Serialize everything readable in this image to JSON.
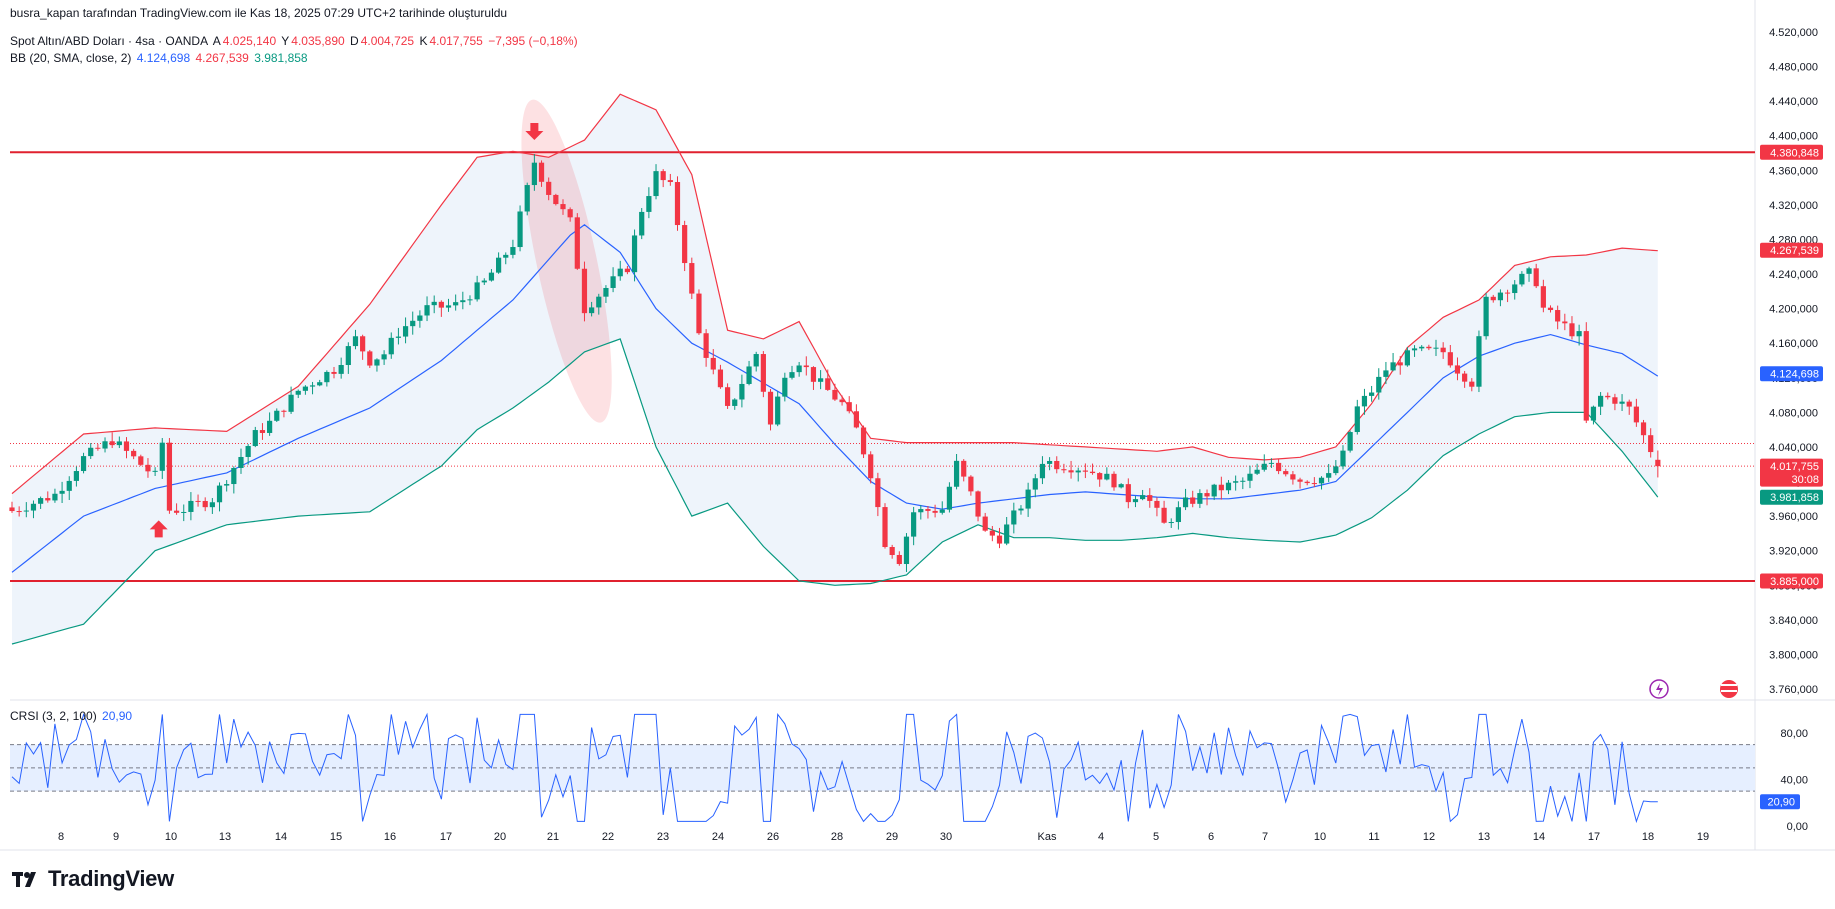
{
  "attribution": "busra_kapan tarafından TradingView.com ile Kas 18, 2025 07:29 UTC+2 tarihinde oluşturuldu",
  "symbol_line": {
    "name": "Spot Altın/ABD Doları · 4sa · OANDA",
    "open_label": "A",
    "open": "4.025,140",
    "high_label": "Y",
    "high": "4.035,890",
    "low_label": "D",
    "low": "4.004,725",
    "close_label": "K",
    "close": "4.017,755",
    "change": "−7,395 (−0,18%)"
  },
  "bb_line": {
    "name": "BB (20, SMA, close, 2)",
    "basis": "4.124,698",
    "upper": "4.267,539",
    "lower": "3.981,858"
  },
  "crsi_line": {
    "name": "CRSI (3, 2, 100)",
    "value": "20,90"
  },
  "brand": "TradingView",
  "colors": {
    "up": "#089981",
    "down": "#f23645",
    "basis": "#2962ff",
    "upper": "#f23645",
    "lower": "#089981",
    "band_fill": "#eef4fb",
    "level_line": "#e0212f",
    "crsi_line": "#2962ff",
    "crsi_band": "#e6efff"
  },
  "chart_data": {
    "type": "candlestick",
    "timeframe": "4sa",
    "x_tick_labels": [
      "8",
      "9",
      "10",
      "13",
      "14",
      "15",
      "16",
      "17",
      "20",
      "21",
      "22",
      "23",
      "24",
      "26",
      "28",
      "29",
      "30",
      "Kas",
      "4",
      "5",
      "6",
      "7",
      "10",
      "11",
      "12",
      "13",
      "14",
      "17",
      "18",
      "19"
    ],
    "y_tick_labels": [
      "4.520,000",
      "4.480,000",
      "4.440,000",
      "4.400,000",
      "4.360,000",
      "4.320,000",
      "4.280,000",
      "4.240,000",
      "4.200,000",
      "4.160,000",
      "4.120,000",
      "4.080,000",
      "4.040,000",
      "4.000,000",
      "3.960,000",
      "3.920,000",
      "3.880,000",
      "3.840,000",
      "3.800,000",
      "3.760,000"
    ],
    "ylim": [
      3745,
      4535
    ],
    "price_labels": [
      {
        "text": "4.380,848",
        "value": 4380.848,
        "color": "#f23645"
      },
      {
        "text": "4.267,539",
        "value": 4267.539,
        "color": "#f23645"
      },
      {
        "text": "4.124,698",
        "value": 4124.698,
        "color": "#2962ff"
      },
      {
        "text": "4.017,755",
        "value": 4017.755,
        "color": "#f23645",
        "countdown": "30:08"
      },
      {
        "text": "3.981,858",
        "value": 3981.858,
        "color": "#089981"
      },
      {
        "text": "3.885,000",
        "value": 3885.0,
        "color": "#f23645"
      }
    ],
    "horizontal_levels": [
      4380.848,
      3885.0
    ],
    "dotted_levels": [
      4044,
      4017.755
    ],
    "key_points": [
      [
        0,
        3966
      ],
      [
        6,
        3985
      ],
      [
        10,
        4027
      ],
      [
        14,
        4048
      ],
      [
        20,
        4006
      ],
      [
        21,
        4045
      ],
      [
        22,
        3967
      ],
      [
        24,
        3968
      ],
      [
        28,
        3980
      ],
      [
        30,
        4004
      ],
      [
        34,
        4054
      ],
      [
        36,
        4068
      ],
      [
        40,
        4105
      ],
      [
        45,
        4130
      ],
      [
        48,
        4165
      ],
      [
        50,
        4140
      ],
      [
        52,
        4148
      ],
      [
        54,
        4173
      ],
      [
        58,
        4200
      ],
      [
        62,
        4204
      ],
      [
        66,
        4230
      ],
      [
        70,
        4275
      ],
      [
        73,
        4370
      ],
      [
        75,
        4335
      ],
      [
        78,
        4300
      ],
      [
        80,
        4200
      ],
      [
        86,
        4248
      ],
      [
        88,
        4315
      ],
      [
        90,
        4355
      ],
      [
        92,
        4340
      ],
      [
        94,
        4258
      ],
      [
        96,
        4170
      ],
      [
        100,
        4082
      ],
      [
        104,
        4148
      ],
      [
        106,
        4065
      ],
      [
        108,
        4127
      ],
      [
        110,
        4140
      ],
      [
        112,
        4120
      ],
      [
        116,
        4090
      ],
      [
        118,
        4060
      ],
      [
        120,
        4010
      ],
      [
        122,
        3930
      ],
      [
        124,
        3910
      ],
      [
        126,
        3965
      ],
      [
        130,
        3968
      ],
      [
        132,
        4020
      ],
      [
        134,
        3985
      ],
      [
        136,
        3940
      ],
      [
        138,
        3935
      ],
      [
        142,
        3985
      ],
      [
        144,
        4025
      ],
      [
        146,
        4020
      ],
      [
        150,
        4015
      ],
      [
        154,
        4000
      ],
      [
        156,
        3980
      ],
      [
        158,
        3990
      ],
      [
        161,
        3950
      ],
      [
        164,
        3975
      ],
      [
        168,
        3990
      ],
      [
        172,
        4000
      ],
      [
        176,
        4022
      ],
      [
        180,
        4002
      ],
      [
        184,
        4005
      ],
      [
        186,
        4030
      ],
      [
        188,
        4085
      ],
      [
        190,
        4105
      ],
      [
        192,
        4130
      ],
      [
        196,
        4150
      ],
      [
        200,
        4150
      ],
      [
        202,
        4130
      ],
      [
        204,
        4115
      ],
      [
        206,
        4210
      ],
      [
        210,
        4230
      ],
      [
        212,
        4240
      ],
      [
        213,
        4232
      ],
      [
        214,
        4200
      ],
      [
        216,
        4185
      ],
      [
        219,
        4168
      ],
      [
        220,
        4068
      ],
      [
        222,
        4098
      ],
      [
        224,
        4095
      ],
      [
        226,
        4084
      ],
      [
        229,
        4037
      ],
      [
        230,
        4018
      ]
    ],
    "bollinger": {
      "basis": [
        [
          0,
          3895
        ],
        [
          10,
          3960
        ],
        [
          20,
          3992
        ],
        [
          30,
          4010
        ],
        [
          40,
          4050
        ],
        [
          50,
          4085
        ],
        [
          60,
          4140
        ],
        [
          70,
          4210
        ],
        [
          78,
          4285
        ],
        [
          80,
          4297
        ],
        [
          85,
          4265
        ],
        [
          90,
          4200
        ],
        [
          95,
          4160
        ],
        [
          100,
          4138
        ],
        [
          110,
          4090
        ],
        [
          115,
          4043
        ],
        [
          120,
          4000
        ],
        [
          125,
          3975
        ],
        [
          130,
          3968
        ],
        [
          135,
          3975
        ],
        [
          140,
          3980
        ],
        [
          145,
          3985
        ],
        [
          150,
          3988
        ],
        [
          155,
          3985
        ],
        [
          160,
          3982
        ],
        [
          165,
          3980
        ],
        [
          170,
          3980
        ],
        [
          175,
          3985
        ],
        [
          180,
          3990
        ],
        [
          185,
          4000
        ],
        [
          190,
          4040
        ],
        [
          195,
          4080
        ],
        [
          200,
          4120
        ],
        [
          205,
          4145
        ],
        [
          210,
          4160
        ],
        [
          215,
          4170
        ],
        [
          220,
          4158
        ],
        [
          225,
          4148
        ],
        [
          230,
          4122
        ]
      ],
      "upper": [
        [
          0,
          3986
        ],
        [
          10,
          4055
        ],
        [
          20,
          4062
        ],
        [
          30,
          4058
        ],
        [
          40,
          4110
        ],
        [
          50,
          4205
        ],
        [
          60,
          4320
        ],
        [
          65,
          4375
        ],
        [
          70,
          4382
        ],
        [
          75,
          4375
        ],
        [
          80,
          4395
        ],
        [
          85,
          4448
        ],
        [
          90,
          4430
        ],
        [
          95,
          4355
        ],
        [
          100,
          4175
        ],
        [
          105,
          4165
        ],
        [
          110,
          4185
        ],
        [
          115,
          4110
        ],
        [
          120,
          4050
        ],
        [
          125,
          4045
        ],
        [
          130,
          4045
        ],
        [
          140,
          4045
        ],
        [
          150,
          4040
        ],
        [
          160,
          4035
        ],
        [
          165,
          4040
        ],
        [
          170,
          4028
        ],
        [
          175,
          4025
        ],
        [
          180,
          4028
        ],
        [
          185,
          4040
        ],
        [
          190,
          4090
        ],
        [
          195,
          4155
        ],
        [
          200,
          4190
        ],
        [
          205,
          4210
        ],
        [
          210,
          4250
        ],
        [
          215,
          4260
        ],
        [
          220,
          4262
        ],
        [
          225,
          4270
        ],
        [
          230,
          4267
        ]
      ],
      "lower": [
        [
          0,
          3812
        ],
        [
          10,
          3835
        ],
        [
          20,
          3920
        ],
        [
          30,
          3950
        ],
        [
          40,
          3960
        ],
        [
          50,
          3965
        ],
        [
          60,
          4018
        ],
        [
          65,
          4060
        ],
        [
          70,
          4085
        ],
        [
          75,
          4115
        ],
        [
          80,
          4150
        ],
        [
          85,
          4165
        ],
        [
          90,
          4040
        ],
        [
          95,
          3960
        ],
        [
          100,
          3975
        ],
        [
          105,
          3925
        ],
        [
          110,
          3885
        ],
        [
          115,
          3880
        ],
        [
          120,
          3882
        ],
        [
          125,
          3892
        ],
        [
          130,
          3930
        ],
        [
          135,
          3950
        ],
        [
          140,
          3935
        ],
        [
          145,
          3935
        ],
        [
          150,
          3932
        ],
        [
          155,
          3932
        ],
        [
          160,
          3935
        ],
        [
          165,
          3940
        ],
        [
          170,
          3935
        ],
        [
          175,
          3932
        ],
        [
          180,
          3930
        ],
        [
          185,
          3938
        ],
        [
          190,
          3958
        ],
        [
          195,
          3990
        ],
        [
          200,
          4030
        ],
        [
          205,
          4055
        ],
        [
          210,
          4075
        ],
        [
          215,
          4080
        ],
        [
          220,
          4080
        ],
        [
          225,
          4035
        ],
        [
          230,
          3982
        ]
      ]
    },
    "markers": [
      {
        "type": "arrow-up",
        "index": 20.5,
        "value": 3955
      },
      {
        "type": "arrow-down",
        "index": 73,
        "value": 4395
      }
    ],
    "crsi": {
      "title": "CRSI (3, 2, 100)",
      "ylim": [
        0,
        100
      ],
      "y_tick_labels": [
        "80,00",
        "40,00",
        "0,00"
      ],
      "band": [
        30,
        70
      ],
      "mid": 50,
      "last": 20.9
    }
  }
}
